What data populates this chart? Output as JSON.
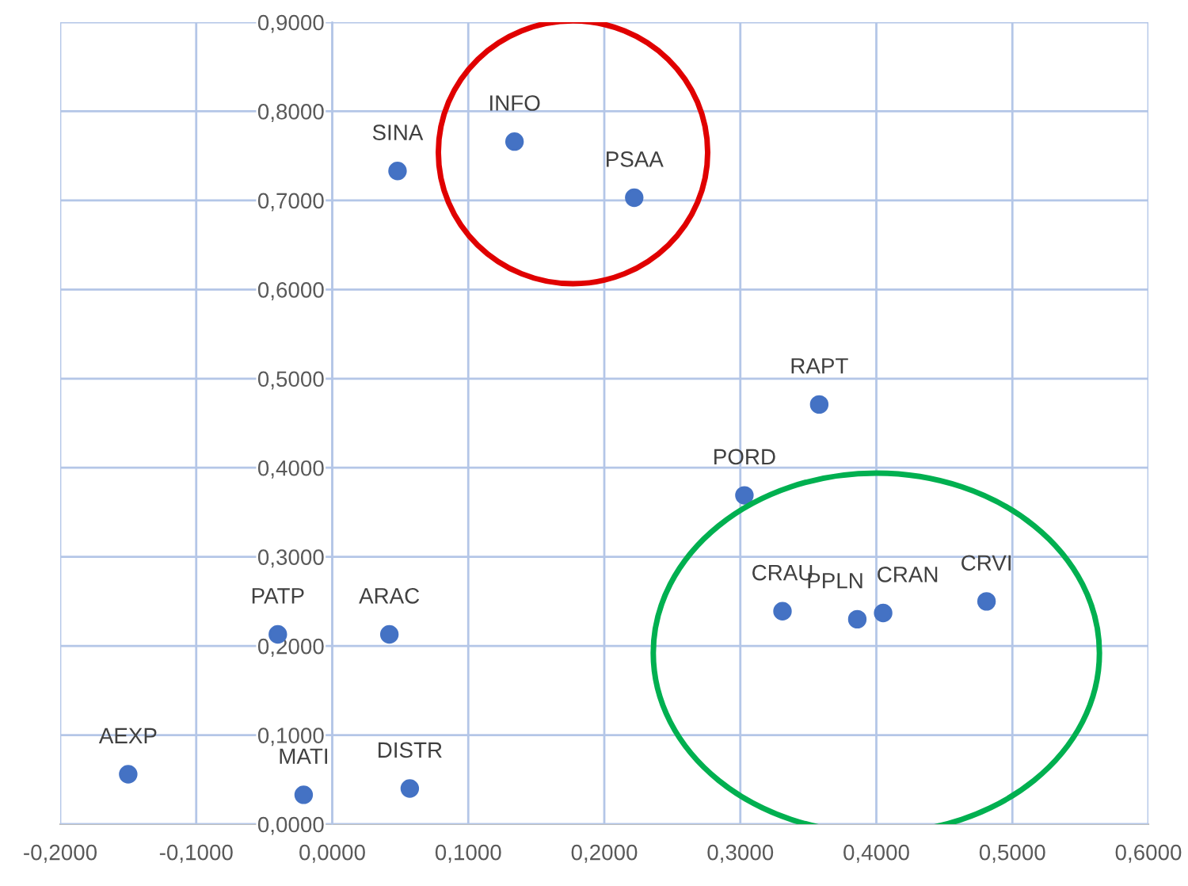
{
  "chart_data": {
    "type": "scatter",
    "x": [
      -0.15,
      -0.021,
      -0.04,
      0.042,
      0.057,
      0.048,
      0.134,
      0.222,
      0.358,
      0.303,
      0.331,
      0.386,
      0.405,
      0.481
    ],
    "series": [
      {
        "color": "#4472c4",
        "values": [
          0.056,
          0.033,
          0.213,
          0.213,
          0.04,
          0.733,
          0.766,
          0.703,
          0.471,
          0.369,
          0.239,
          0.23,
          0.237,
          0.25
        ]
      }
    ],
    "annotations": [
      {
        "text": "AEXP",
        "x": -0.15,
        "y": 0.056
      },
      {
        "text": "MATI",
        "x": -0.021,
        "y": 0.033
      },
      {
        "text": "PATP",
        "x": -0.04,
        "y": 0.213
      },
      {
        "text": "ARAC",
        "x": 0.042,
        "y": 0.213
      },
      {
        "text": "DISTR",
        "x": 0.057,
        "y": 0.04
      },
      {
        "text": "SINA",
        "x": 0.048,
        "y": 0.733
      },
      {
        "text": "INFO",
        "x": 0.134,
        "y": 0.766
      },
      {
        "text": "PSAA",
        "x": 0.222,
        "y": 0.703
      },
      {
        "text": "RAPT",
        "x": 0.358,
        "y": 0.471
      },
      {
        "text": "PORD",
        "x": 0.303,
        "y": 0.369
      },
      {
        "text": "CRAU",
        "x": 0.331,
        "y": 0.239
      },
      {
        "text": "PPLN",
        "x": 0.386,
        "y": 0.23
      },
      {
        "text": "CRAN",
        "x": 0.405,
        "y": 0.237
      },
      {
        "text": "CRVI",
        "x": 0.481,
        "y": 0.25
      }
    ],
    "xlim": [
      -0.2,
      0.6
    ],
    "ylim": [
      0,
      0.9
    ],
    "xticks": [
      {
        "value": -0.2,
        "label": "-0,2000"
      },
      {
        "value": -0.1,
        "label": "-0,1000"
      },
      {
        "value": 0,
        "label": "0,0000"
      },
      {
        "value": 0.1,
        "label": "0,1000"
      },
      {
        "value": 0.2,
        "label": "0,2000"
      },
      {
        "value": 0.3,
        "label": "0,3000"
      },
      {
        "value": 0.4,
        "label": "0,4000"
      },
      {
        "value": 0.5,
        "label": "0,5000"
      },
      {
        "value": 0.6,
        "label": "0,6000"
      }
    ],
    "yticks": [
      {
        "value": 0,
        "label": "0,0000"
      },
      {
        "value": 0.1,
        "label": "0,1000"
      },
      {
        "value": 0.2,
        "label": "0,2000"
      },
      {
        "value": 0.3,
        "label": "0,3000"
      },
      {
        "value": 0.4,
        "label": "0,4000"
      },
      {
        "value": 0.5,
        "label": "0,5000"
      },
      {
        "value": 0.6,
        "label": "0,6000"
      },
      {
        "value": 0.7,
        "label": "0,7000"
      },
      {
        "value": 0.8,
        "label": "0,8000"
      },
      {
        "value": 0.9,
        "label": "0,9000"
      }
    ],
    "grid": true,
    "marker": "circle"
  }
}
